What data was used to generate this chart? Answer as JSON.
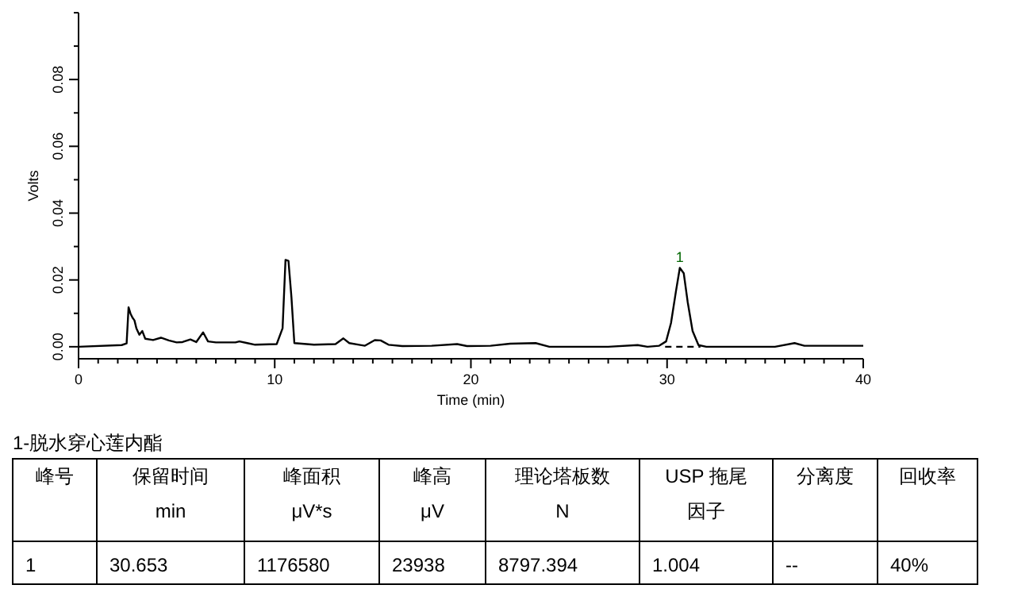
{
  "chart_data": {
    "type": "line",
    "xlabel": "Time (min)",
    "ylabel": "Volts",
    "xlim": [
      0,
      40
    ],
    "ylim": [
      -0.0036,
      0.1
    ],
    "xticks": [
      0,
      {
        "value": 1,
        "label": null
      },
      {
        "value": 2,
        "label": null
      },
      {
        "value": 3,
        "label": null
      },
      {
        "value": 4,
        "label": null
      },
      {
        "value": 5,
        "label": null
      },
      {
        "value": 6,
        "label": null
      },
      {
        "value": 7,
        "label": null
      },
      {
        "value": 8,
        "label": null
      },
      {
        "value": 9,
        "label": null
      },
      10,
      {
        "value": 11,
        "label": null
      },
      {
        "value": 12,
        "label": null
      },
      {
        "value": 13,
        "label": null
      },
      {
        "value": 14,
        "label": null
      },
      {
        "value": 15,
        "label": null
      },
      {
        "value": 16,
        "label": null
      },
      {
        "value": 17,
        "label": null
      },
      {
        "value": 18,
        "label": null
      },
      {
        "value": 19,
        "label": null
      },
      20,
      {
        "value": 21,
        "label": null
      },
      {
        "value": 22,
        "label": null
      },
      {
        "value": 23,
        "label": null
      },
      {
        "value": 24,
        "label": null
      },
      {
        "value": 25,
        "label": null
      },
      {
        "value": 26,
        "label": null
      },
      {
        "value": 27,
        "label": null
      },
      {
        "value": 28,
        "label": null
      },
      {
        "value": 29,
        "label": null
      },
      30,
      {
        "value": 31,
        "label": null
      },
      {
        "value": 32,
        "label": null
      },
      {
        "value": 33,
        "label": null
      },
      {
        "value": 34,
        "label": null
      },
      {
        "value": 35,
        "label": null
      },
      {
        "value": 36,
        "label": null
      },
      {
        "value": 37,
        "label": null
      },
      {
        "value": 38,
        "label": null
      },
      {
        "value": 39,
        "label": null
      },
      40
    ],
    "yticks": [
      {
        "value": 0,
        "label": "0.00"
      },
      {
        "value": 0.01,
        "label": null
      },
      {
        "value": 0.02,
        "label": "0.02"
      },
      {
        "value": 0.03,
        "label": null
      },
      {
        "value": 0.04,
        "label": "0.04"
      },
      {
        "value": 0.05,
        "label": null
      },
      {
        "value": 0.06,
        "label": "0.06"
      },
      {
        "value": 0.07,
        "label": null
      },
      {
        "value": 0.08,
        "label": "0.08"
      },
      {
        "value": 0.09,
        "label": null
      },
      {
        "value": 0.1,
        "label": null
      }
    ],
    "grid": false,
    "marker": "none",
    "series": [
      {
        "color": "#000000",
        "line_style": "solid",
        "x": [
          0,
          2.2,
          2.45,
          2.55,
          2.65,
          2.75,
          2.85,
          2.95,
          3.1,
          3.25,
          3.4,
          3.8,
          4.2,
          4.6,
          5.0,
          5.3,
          5.7,
          6.0,
          6.35,
          6.6,
          7.0,
          8.0,
          8.2,
          8.6,
          9.0,
          10.1,
          10.4,
          10.55,
          10.7,
          10.85,
          11.0,
          12.0,
          13.1,
          13.5,
          13.8,
          14.3,
          14.6,
          15.1,
          15.4,
          15.8,
          16.5,
          18.0,
          19.3,
          19.8,
          21.0,
          22.0,
          23.3,
          24.0,
          27.0,
          28.5,
          29.0,
          29.6,
          29.95,
          30.2,
          30.45,
          30.65,
          30.85,
          31.05,
          31.3,
          31.6,
          32.0,
          35.5,
          36.5,
          37.0,
          40.0
        ],
        "values": [
          0,
          0.0005,
          0.001,
          0.0118,
          0.0099,
          0.0087,
          0.0079,
          0.0055,
          0.0036,
          0.0047,
          0.0024,
          0.002,
          0.0027,
          0.0019,
          0.0013,
          0.0014,
          0.0022,
          0.0014,
          0.0043,
          0.0016,
          0.0013,
          0.0013,
          0.0016,
          0.0011,
          0.0006,
          0.0008,
          0.0055,
          0.026,
          0.0257,
          0.015,
          0.0011,
          0.0006,
          0.0008,
          0.0025,
          0.0011,
          0.0006,
          0.0003,
          0.002,
          0.0019,
          0.0006,
          0.0002,
          0.0003,
          0.0008,
          0.0002,
          0.0003,
          0.0009,
          0.0011,
          0,
          0,
          0.0005,
          0,
          0.0003,
          0.0016,
          0.0071,
          0.0165,
          0.0236,
          0.022,
          0.0134,
          0.0047,
          0.0005,
          0,
          0,
          0.0011,
          0.0003,
          0.0003
        ]
      },
      {
        "color": "#000000",
        "line_style": "dashed",
        "x": [
          29.9,
          31.7
        ],
        "values": [
          0,
          0
        ]
      }
    ],
    "annotations": [
      {
        "text": "1",
        "x": 30.65,
        "y": 0.0236
      },
      "1-脱水穿心莲内酯",
      "峰号",
      "保留时间\nmin",
      "峰面积\nμV*s",
      "峰高\nμV",
      "理论塔板数\nN",
      "USP 拖尾因子",
      "分离度",
      "回收率",
      "1",
      "30.653",
      "1176580",
      "23938",
      "8797.394",
      "1.004",
      "--",
      "40%"
    ]
  }
}
